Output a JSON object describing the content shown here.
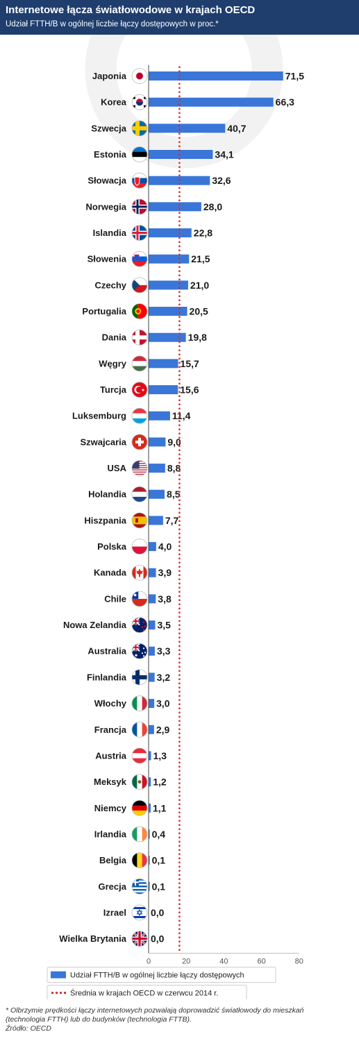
{
  "header": {
    "title": "Internetowe łącza światłowodowe w krajach OECD",
    "subtitle": "Udział FTTH/B w ogólnej liczbie łączy dostępowych w proc.*"
  },
  "chart_data": {
    "type": "bar",
    "orientation": "horizontal",
    "categories": [
      "Japonia",
      "Korea",
      "Szwecja",
      "Estonia",
      "Słowacja",
      "Norwegia",
      "Islandia",
      "Słowenia",
      "Czechy",
      "Portugalia",
      "Dania",
      "Węgry",
      "Turcja",
      "Luksemburg",
      "Szwajcaria",
      "USA",
      "Holandia",
      "Hiszpania",
      "Polska",
      "Kanada",
      "Chile",
      "Nowa Zelandia",
      "Australia",
      "Finlandia",
      "Włochy",
      "Francja",
      "Austria",
      "Meksyk",
      "Niemcy",
      "Irlandia",
      "Belgia",
      "Grecja",
      "Izrael",
      "Wielka Brytania"
    ],
    "series": [
      {
        "name": "Udział FTTH/B w ogólnej liczbie łączy dostępowych",
        "values": [
          71.5,
          66.3,
          40.7,
          34.1,
          32.6,
          28.0,
          22.8,
          21.5,
          21.0,
          20.5,
          19.8,
          15.7,
          15.6,
          11.4,
          9.0,
          8.8,
          8.5,
          7.7,
          4.0,
          3.9,
          3.8,
          3.5,
          3.3,
          3.2,
          3.0,
          2.9,
          1.3,
          1.2,
          1.1,
          0.4,
          0.1,
          0.1,
          0.0,
          0.0
        ],
        "labels": [
          "71,5",
          "66,3",
          "40,7",
          "34,1",
          "32,6",
          "28,0",
          "22,8",
          "21,5",
          "21,0",
          "20,5",
          "19,8",
          "15,7",
          "15,6",
          "11,4",
          "9,0",
          "8,8",
          "8,5",
          "7,7",
          "4,0",
          "3,9",
          "3,8",
          "3,5",
          "3,3",
          "3,2",
          "3,0",
          "2,9",
          "1,3",
          "1,2",
          "1,1",
          "0,4",
          "0,1",
          "0,1",
          "0,0",
          "0,0"
        ]
      }
    ],
    "reference_line": {
      "name": "Średnia w krajach OECD w czerwcu 2014 r.",
      "value": 16.4
    },
    "xlim": [
      0,
      80
    ],
    "xticks": [
      0,
      20,
      40,
      60,
      80
    ],
    "colors": {
      "bar": "#3a76d8",
      "reference": "#d03030",
      "header": "#1f3e6e"
    },
    "legend_position": "bottom",
    "flag_icons": [
      "japan-flag-icon",
      "south-korea-flag-icon",
      "sweden-flag-icon",
      "estonia-flag-icon",
      "slovakia-flag-icon",
      "norway-flag-icon",
      "iceland-flag-icon",
      "slovenia-flag-icon",
      "czechia-flag-icon",
      "portugal-flag-icon",
      "denmark-flag-icon",
      "hungary-flag-icon",
      "turkey-flag-icon",
      "luxembourg-flag-icon",
      "switzerland-flag-icon",
      "usa-flag-icon",
      "netherlands-flag-icon",
      "spain-flag-icon",
      "poland-flag-icon",
      "canada-flag-icon",
      "chile-flag-icon",
      "new-zealand-flag-icon",
      "australia-flag-icon",
      "finland-flag-icon",
      "italy-flag-icon",
      "france-flag-icon",
      "austria-flag-icon",
      "mexico-flag-icon",
      "germany-flag-icon",
      "ireland-flag-icon",
      "belgium-flag-icon",
      "greece-flag-icon",
      "israel-flag-icon",
      "uk-flag-icon"
    ]
  },
  "footnote": {
    "line1": "* Olbrzymie prędkości łączy internetowych pozwalają doprowadzić światłowody do mieszkań",
    "line2": "(technologia FTTH) lub do budynków (technologia FTTB).",
    "source": "Źródło: OECD"
  }
}
